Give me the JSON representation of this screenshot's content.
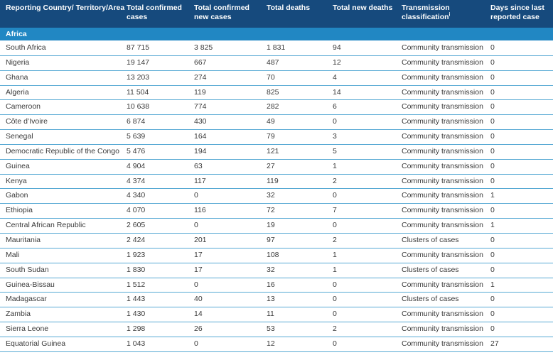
{
  "table": {
    "columns": [
      {
        "label": "Reporting Country/ Territory/Area"
      },
      {
        "label": "Total confirmed cases"
      },
      {
        "label": "Total confirmed new cases"
      },
      {
        "label": "Total deaths"
      },
      {
        "label": "Total new deaths"
      },
      {
        "label": "Transmission classification",
        "sup": "i"
      },
      {
        "label": "Days since last reported case"
      }
    ],
    "region_header": "Africa",
    "rows": [
      {
        "country": "South Africa",
        "total_cases": "87 715",
        "new_cases": "3 825",
        "total_deaths": "1 831",
        "new_deaths": "94",
        "classification": "Community transmission",
        "days_since": "0"
      },
      {
        "country": "Nigeria",
        "total_cases": "19 147",
        "new_cases": "667",
        "total_deaths": "487",
        "new_deaths": "12",
        "classification": "Community transmission",
        "days_since": "0"
      },
      {
        "country": "Ghana",
        "total_cases": "13 203",
        "new_cases": "274",
        "total_deaths": "70",
        "new_deaths": "4",
        "classification": "Community transmission",
        "days_since": "0"
      },
      {
        "country": "Algeria",
        "total_cases": "11 504",
        "new_cases": "119",
        "total_deaths": "825",
        "new_deaths": "14",
        "classification": "Community transmission",
        "days_since": "0"
      },
      {
        "country": "Cameroon",
        "total_cases": "10 638",
        "new_cases": "774",
        "total_deaths": "282",
        "new_deaths": "6",
        "classification": "Community transmission",
        "days_since": "0"
      },
      {
        "country": "Côte d’Ivoire",
        "total_cases": "6 874",
        "new_cases": "430",
        "total_deaths": "49",
        "new_deaths": "0",
        "classification": "Community transmission",
        "days_since": "0"
      },
      {
        "country": "Senegal",
        "total_cases": "5 639",
        "new_cases": "164",
        "total_deaths": "79",
        "new_deaths": "3",
        "classification": "Community transmission",
        "days_since": "0"
      },
      {
        "country": "Democratic Republic of the Congo",
        "total_cases": "5 476",
        "new_cases": "194",
        "total_deaths": "121",
        "new_deaths": "5",
        "classification": "Community transmission",
        "days_since": "0"
      },
      {
        "country": "Guinea",
        "total_cases": "4 904",
        "new_cases": "63",
        "total_deaths": "27",
        "new_deaths": "1",
        "classification": "Community transmission",
        "days_since": "0"
      },
      {
        "country": "Kenya",
        "total_cases": "4 374",
        "new_cases": "117",
        "total_deaths": "119",
        "new_deaths": "2",
        "classification": "Community transmission",
        "days_since": "0"
      },
      {
        "country": "Gabon",
        "total_cases": "4 340",
        "new_cases": "0",
        "total_deaths": "32",
        "new_deaths": "0",
        "classification": "Community transmission",
        "days_since": "1"
      },
      {
        "country": "Ethiopia",
        "total_cases": "4 070",
        "new_cases": "116",
        "total_deaths": "72",
        "new_deaths": "7",
        "classification": "Community transmission",
        "days_since": "0"
      },
      {
        "country": "Central African Republic",
        "total_cases": "2 605",
        "new_cases": "0",
        "total_deaths": "19",
        "new_deaths": "0",
        "classification": "Community transmission",
        "days_since": "1"
      },
      {
        "country": "Mauritania",
        "total_cases": "2 424",
        "new_cases": "201",
        "total_deaths": "97",
        "new_deaths": "2",
        "classification": "Clusters of cases",
        "days_since": "0"
      },
      {
        "country": "Mali",
        "total_cases": "1 923",
        "new_cases": "17",
        "total_deaths": "108",
        "new_deaths": "1",
        "classification": "Community transmission",
        "days_since": "0"
      },
      {
        "country": "South Sudan",
        "total_cases": "1 830",
        "new_cases": "17",
        "total_deaths": "32",
        "new_deaths": "1",
        "classification": "Clusters of cases",
        "days_since": "0"
      },
      {
        "country": "Guinea-Bissau",
        "total_cases": "1 512",
        "new_cases": "0",
        "total_deaths": "16",
        "new_deaths": "0",
        "classification": "Community transmission",
        "days_since": "1"
      },
      {
        "country": "Madagascar",
        "total_cases": "1 443",
        "new_cases": "40",
        "total_deaths": "13",
        "new_deaths": "0",
        "classification": "Clusters of cases",
        "days_since": "0"
      },
      {
        "country": "Zambia",
        "total_cases": "1 430",
        "new_cases": "14",
        "total_deaths": "11",
        "new_deaths": "0",
        "classification": "Community transmission",
        "days_since": "0"
      },
      {
        "country": "Sierra Leone",
        "total_cases": "1 298",
        "new_cases": "26",
        "total_deaths": "53",
        "new_deaths": "2",
        "classification": "Community transmission",
        "days_since": "0"
      },
      {
        "country": "Equatorial Guinea",
        "total_cases": "1 043",
        "new_cases": "0",
        "total_deaths": "12",
        "new_deaths": "0",
        "classification": "Community transmission",
        "days_since": "27"
      }
    ]
  },
  "colors": {
    "header_bg": "#164a7d",
    "region_bg": "#2187c3",
    "row_divider": "#57a9d4",
    "body_text": "#3a3a3a",
    "header_text": "#ffffff"
  }
}
